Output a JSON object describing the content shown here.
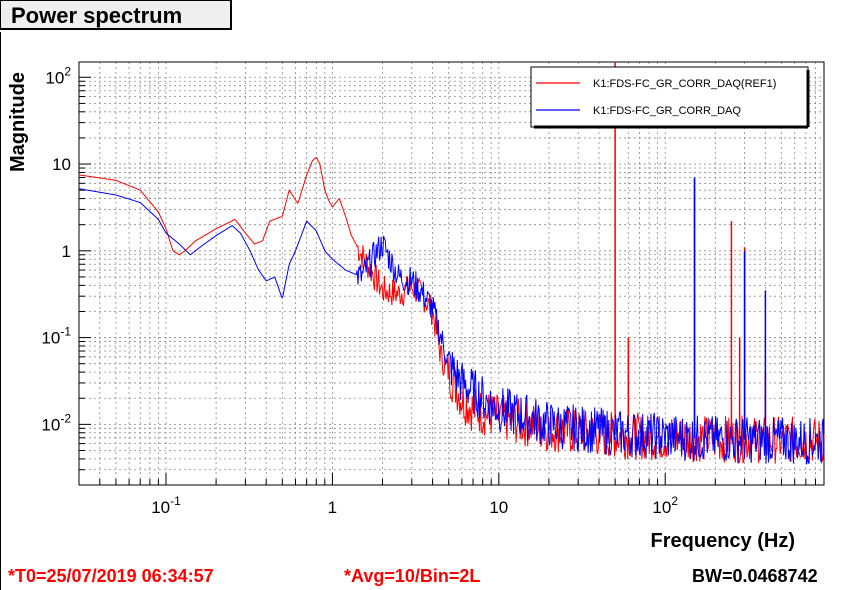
{
  "window": {
    "title": "Power spectrum"
  },
  "footer": {
    "t0": "*T0=25/07/2019 06:34:57",
    "avg": "*Avg=10/Bin=2L",
    "bw": "BW=0.0468742"
  },
  "colors": {
    "ref": "#ff0000",
    "live": "#0000ff",
    "grid": "#8c8c8c"
  },
  "chart_data": {
    "type": "line",
    "xscale": "log",
    "yscale": "log",
    "xlim": [
      0.03,
      900
    ],
    "ylim": [
      0.002,
      150
    ],
    "xlabel": "Frequency (Hz)",
    "ylabel": "Magnitude",
    "grid": true,
    "legend_position": "top-right",
    "x_tick_labels": [
      {
        "v": 0.1,
        "base": "10",
        "exp": "-1"
      },
      {
        "v": 1,
        "base": "1",
        "exp": ""
      },
      {
        "v": 10,
        "base": "10",
        "exp": ""
      },
      {
        "v": 100,
        "base": "10",
        "exp": "2"
      }
    ],
    "y_tick_labels": [
      {
        "v": 0.01,
        "base": "10",
        "exp": "-2"
      },
      {
        "v": 0.1,
        "base": "10",
        "exp": "-1"
      },
      {
        "v": 1,
        "base": "1",
        "exp": ""
      },
      {
        "v": 10,
        "base": "10",
        "exp": ""
      },
      {
        "v": 100,
        "base": "10",
        "exp": "2"
      }
    ],
    "series": [
      {
        "name": "K1:FDS-FC_GR_CORR_DAQ(REF1)",
        "color": "#ff0000",
        "x": [
          0.03,
          0.05,
          0.07,
          0.09,
          0.1,
          0.11,
          0.12,
          0.13,
          0.15,
          0.2,
          0.26,
          0.3,
          0.34,
          0.38,
          0.42,
          0.5,
          0.55,
          0.62,
          0.7,
          0.76,
          0.8,
          0.84,
          0.86,
          0.9,
          0.95,
          1.0,
          1.1,
          1.2,
          1.3,
          1.5,
          1.7,
          2.0,
          2.5,
          3.0,
          3.5,
          4.0,
          4.5,
          5.0,
          6.0,
          7.0,
          10,
          15,
          20,
          30,
          50,
          100,
          200,
          500,
          900
        ],
        "y": [
          7.5,
          6.5,
          5.0,
          2.8,
          1.8,
          1.0,
          0.9,
          1.0,
          1.3,
          1.8,
          2.3,
          1.6,
          1.2,
          1.3,
          2.2,
          2.5,
          5.0,
          3.5,
          7.5,
          11.0,
          12.0,
          10.0,
          8.0,
          5.0,
          3.8,
          3.2,
          4.0,
          2.5,
          1.5,
          0.9,
          0.6,
          0.35,
          0.32,
          0.38,
          0.3,
          0.2,
          0.06,
          0.04,
          0.02,
          0.015,
          0.012,
          0.01,
          0.009,
          0.008,
          0.0075,
          0.007,
          0.0068,
          0.0066,
          0.0065
        ],
        "peaks": [
          {
            "x": 50,
            "y": 150
          },
          {
            "x": 60,
            "y": 0.1
          },
          {
            "x": 150,
            "y": 6.8
          },
          {
            "x": 250,
            "y": 2.2
          },
          {
            "x": 280,
            "y": 0.1
          },
          {
            "x": 300,
            "y": 1.1
          },
          {
            "x": 400,
            "y": 0.04
          }
        ]
      },
      {
        "name": "K1:FDS-FC_GR_CORR_DAQ",
        "color": "#0000ff",
        "x": [
          0.03,
          0.05,
          0.07,
          0.09,
          0.1,
          0.12,
          0.14,
          0.16,
          0.2,
          0.25,
          0.28,
          0.32,
          0.36,
          0.4,
          0.45,
          0.5,
          0.55,
          0.6,
          0.65,
          0.7,
          0.8,
          0.9,
          1.0,
          1.2,
          1.5,
          1.8,
          2.0,
          2.5,
          3.0,
          3.5,
          4.0,
          4.5,
          5.0,
          6.0,
          8.0,
          10,
          15,
          20,
          30,
          50,
          100,
          200,
          500,
          900
        ],
        "y": [
          5.2,
          4.4,
          3.6,
          2.3,
          1.6,
          1.2,
          0.9,
          1.1,
          1.5,
          1.95,
          1.6,
          1.0,
          0.6,
          0.45,
          0.5,
          0.28,
          0.7,
          1.0,
          1.5,
          2.2,
          1.7,
          1.0,
          0.8,
          0.6,
          0.5,
          0.9,
          1.2,
          0.5,
          0.45,
          0.32,
          0.22,
          0.1,
          0.05,
          0.03,
          0.02,
          0.015,
          0.012,
          0.01,
          0.009,
          0.008,
          0.0072,
          0.0068,
          0.0065,
          0.0064
        ],
        "peaks": [
          {
            "x": 150,
            "y": 7.0
          },
          {
            "x": 300,
            "y": 1.0
          },
          {
            "x": 400,
            "y": 0.35
          }
        ]
      }
    ]
  }
}
